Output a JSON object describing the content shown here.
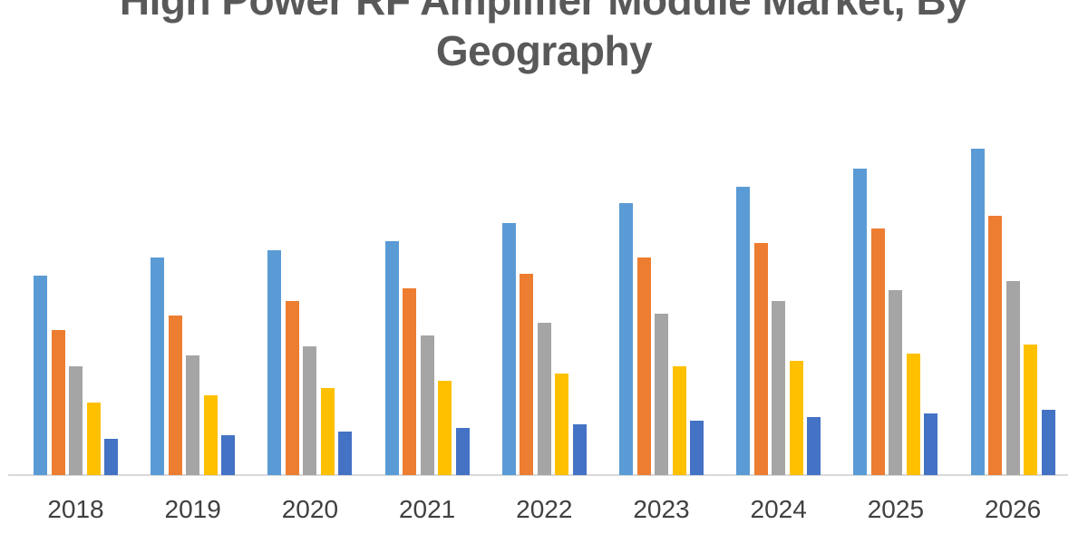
{
  "title": "High Power RF Amplifier Module Market, By Geography",
  "title_lines": [
    "High Power RF Amplifier Module Market, By",
    "Geography"
  ],
  "colors": {
    "background": "#FFFFFF",
    "title_text": "#595959",
    "axis_line": "#D9D9D9",
    "tick_text": "#404040"
  },
  "chart_data": {
    "type": "bar",
    "title": "High Power RF Amplifier Module Market, By Geography",
    "categories": [
      "2018",
      "2019",
      "2020",
      "2021",
      "2022",
      "2023",
      "2024",
      "2025",
      "2026"
    ],
    "series": [
      {
        "name": "blue",
        "color": "#5B9BD5",
        "values": [
          55,
          60,
          62,
          64.5,
          69.5,
          75,
          79.5,
          84.5,
          90
        ]
      },
      {
        "name": "orange",
        "color": "#ED7D31",
        "values": [
          40,
          44,
          48,
          51.5,
          55.5,
          60,
          64,
          68,
          71.5
        ]
      },
      {
        "name": "gray",
        "color": "#A5A5A5",
        "values": [
          30,
          33,
          35.5,
          38.5,
          42,
          44.5,
          48,
          51,
          53.5
        ]
      },
      {
        "name": "yellow",
        "color": "#FFC000",
        "values": [
          20,
          22,
          24,
          26,
          28,
          30,
          31.5,
          33.5,
          36
        ]
      },
      {
        "name": "dark-blue",
        "color": "#4472C4",
        "values": [
          10,
          11,
          12,
          13,
          14,
          15,
          16,
          17,
          18
        ]
      }
    ],
    "xlabel": "",
    "ylabel": "",
    "ylim": [
      0,
      100
    ],
    "grid": false,
    "legend": "none",
    "y_axis_labels_visible": false,
    "title_clipped_at_top": true
  }
}
